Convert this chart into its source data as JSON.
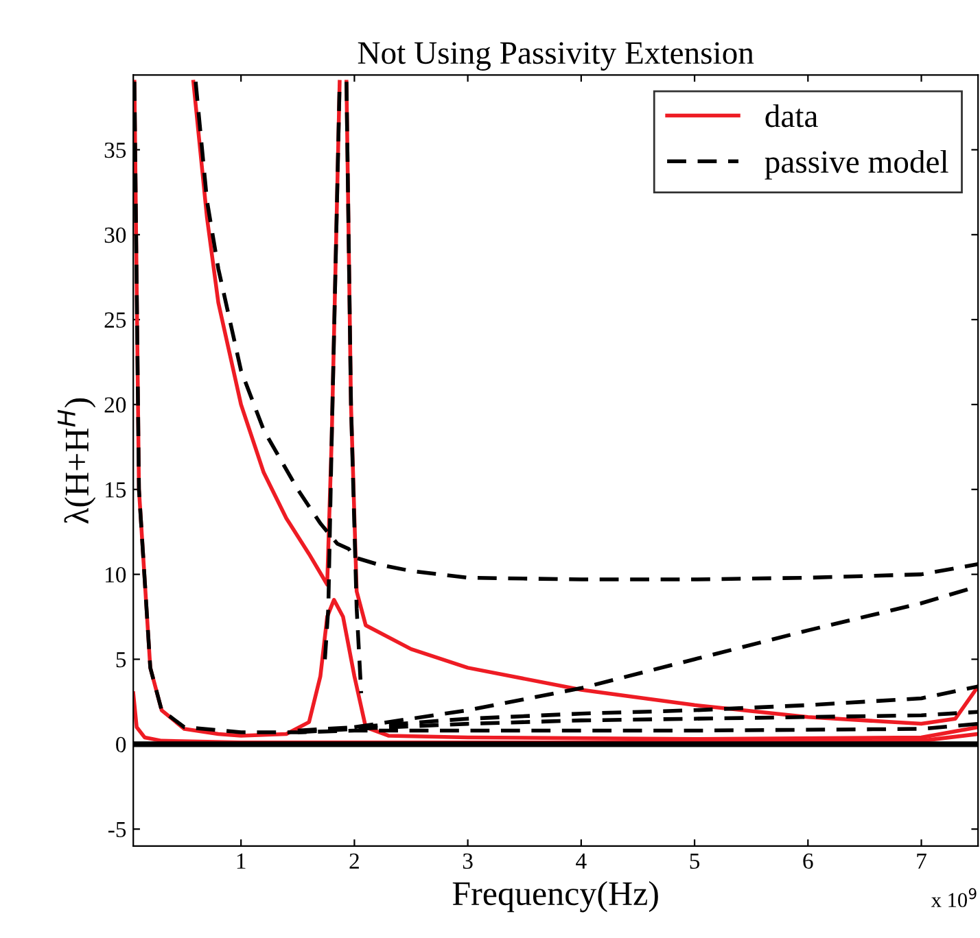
{
  "chart_data": {
    "type": "line",
    "title": "Not Using Passivity Extension",
    "xlabel": "Frequency(Hz)",
    "ylabel": "λ(H+H$^{H}$)",
    "annotations": [
      "x 10$^{9}$"
    ],
    "xlim": [
      0.05,
      7.5
    ],
    "ylim": [
      -6,
      39.4
    ],
    "xticks": [
      1,
      2,
      3,
      4,
      5,
      6,
      7
    ],
    "yticks": [
      -5,
      0,
      5,
      10,
      15,
      20,
      25,
      30,
      35
    ],
    "grid": false,
    "legend": "top right",
    "marker": "none",
    "ref_lines": [
      {
        "axis": "y",
        "value": 0,
        "color": "#000000"
      }
    ],
    "series": [
      {
        "name": "data",
        "color": "#ee1c24",
        "line_style": "solid",
        "x": [
          0.58,
          0.7,
          0.8,
          1.0,
          1.2,
          1.4,
          1.6,
          1.76,
          1.8,
          1.84,
          1.87
        ],
        "values": [
          39,
          31,
          26,
          20,
          16,
          13.3,
          11.2,
          9.4,
          18,
          30,
          39
        ]
      },
      {
        "color": "#ee1c24",
        "line_style": "solid",
        "x": [
          1.93,
          1.97,
          2.02,
          2.1,
          2.5,
          3,
          4,
          5,
          6,
          7,
          7.3,
          7.5
        ],
        "values": [
          39,
          20,
          9,
          7,
          5.6,
          4.5,
          3.2,
          2.3,
          1.6,
          1.2,
          1.5,
          3.4
        ]
      },
      {
        "color": "#ee1c24",
        "line_style": "solid",
        "x": [
          0.06,
          0.1,
          0.2,
          0.3,
          0.5,
          0.8,
          1.0,
          1.4,
          1.6,
          1.7,
          1.76,
          1.82,
          1.9,
          2.0,
          2.1,
          2.3,
          3,
          5,
          7,
          7.5
        ],
        "values": [
          39,
          15,
          4.5,
          2,
          0.9,
          0.6,
          0.5,
          0.6,
          1.3,
          4,
          7.5,
          8.5,
          7.5,
          4,
          1,
          0.5,
          0.4,
          0.3,
          0.4,
          1
        ]
      },
      {
        "color": "#ee1c24",
        "line_style": "solid",
        "x": [
          0.05,
          0.08,
          0.15,
          0.3,
          1,
          3,
          5,
          7,
          7.5
        ],
        "values": [
          3,
          1,
          0.4,
          0.2,
          0.1,
          0.1,
          0.1,
          0.2,
          0.6
        ]
      },
      {
        "name": "passive model",
        "color": "#000000",
        "line_style": "dashed",
        "x": [
          0.6,
          0.7,
          0.8,
          1.0,
          1.2,
          1.5,
          1.7,
          1.8,
          1.85,
          1.95,
          2.0,
          2.2,
          2.5,
          3,
          4,
          5,
          6,
          7,
          7.5
        ],
        "values": [
          39,
          32,
          28,
          22,
          18.5,
          15,
          13,
          12.2,
          11.8,
          11.5,
          11.0,
          10.6,
          10.2,
          9.8,
          9.7,
          9.7,
          9.8,
          10.0,
          10.6
        ]
      },
      {
        "color": "#000000",
        "line_style": "dashed",
        "x": [
          1.74,
          1.77,
          1.8,
          1.84,
          1.87
        ],
        "values": [
          5,
          8,
          18,
          30,
          39
        ]
      },
      {
        "color": "#000000",
        "line_style": "dashed",
        "x": [
          1.93,
          1.97,
          2.02,
          2.06
        ],
        "values": [
          39,
          20,
          8,
          3
        ]
      },
      {
        "color": "#000000",
        "line_style": "dashed",
        "x": [
          2,
          3,
          4,
          5,
          6,
          7,
          7.5
        ],
        "values": [
          1.0,
          2.0,
          3.3,
          5.0,
          6.7,
          8.3,
          9.3
        ]
      },
      {
        "color": "#000000",
        "line_style": "dashed",
        "x": [
          1.5,
          2,
          3,
          4,
          5,
          6,
          7,
          7.5
        ],
        "values": [
          0.8,
          1.0,
          1.5,
          1.8,
          2.0,
          2.3,
          2.7,
          3.4
        ]
      },
      {
        "color": "#000000",
        "line_style": "dashed",
        "x": [
          1.5,
          2,
          3,
          4,
          5,
          6,
          7,
          7.5
        ],
        "values": [
          0.7,
          0.9,
          1.2,
          1.4,
          1.5,
          1.6,
          1.7,
          1.9
        ]
      },
      {
        "color": "#000000",
        "line_style": "dashed",
        "x": [
          0.06,
          0.1,
          0.2,
          0.3,
          0.5,
          1.0,
          1.5,
          2,
          3,
          5,
          7,
          7.5
        ],
        "values": [
          39,
          15,
          4.5,
          2,
          1.0,
          0.7,
          0.7,
          0.8,
          0.8,
          0.8,
          0.9,
          1.2
        ]
      }
    ]
  }
}
